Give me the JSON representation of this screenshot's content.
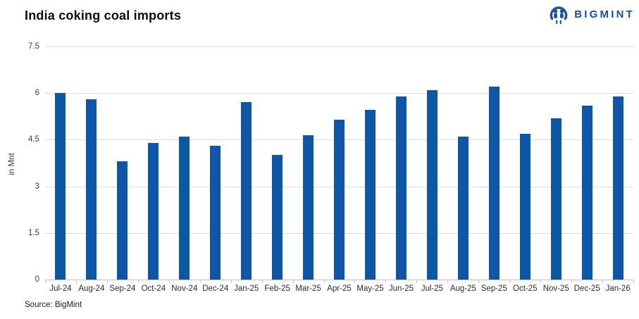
{
  "header": {
    "title": "India coking coal imports",
    "logo_text": "BIGMINT"
  },
  "footer": {
    "source": "Source: BigMint"
  },
  "colors": {
    "bar": "#0e56a6",
    "brand_blue": "#1c4f9e",
    "gridline": "#dcdcdc",
    "axis_line": "#c2c2c2",
    "axis_text": "#3b3b3b"
  },
  "chart_data": {
    "type": "bar",
    "title": "India coking coal imports",
    "xlabel": "",
    "ylabel": "in Mnt",
    "ylim": [
      0,
      7.5
    ],
    "yticks": [
      0,
      1.5,
      3,
      4.5,
      6,
      7.5
    ],
    "grid": true,
    "legend": "none",
    "categories": [
      "Jul-24",
      "Aug-24",
      "Sep-24",
      "Oct-24",
      "Nov-24",
      "Dec-24",
      "Jan-25",
      "Feb-25",
      "Mar-25",
      "Apr-25",
      "May-25",
      "Jun-25",
      "Jul-25",
      "Aug-25",
      "Sep-25",
      "Oct-25",
      "Nov-25",
      "Dec-25",
      "Jan-26"
    ],
    "values": [
      6.0,
      5.8,
      3.8,
      4.4,
      4.6,
      4.3,
      5.7,
      4.0,
      4.65,
      5.15,
      5.45,
      5.9,
      6.1,
      4.6,
      6.2,
      4.7,
      5.2,
      5.6,
      5.9
    ]
  }
}
